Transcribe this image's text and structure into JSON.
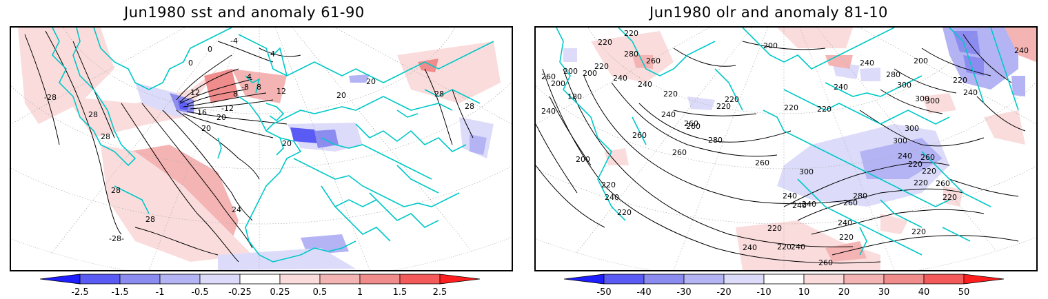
{
  "panels": [
    {
      "title": "Jun1980 sst and anomaly 61-90",
      "contour_labels": [
        "-28",
        "28",
        "28",
        "28",
        "-28-",
        "28",
        "24",
        "20",
        "20",
        "16",
        "12",
        "8",
        "4",
        "0",
        "0",
        "-4",
        "-8",
        "-12",
        "4",
        "8",
        "12",
        "20",
        "20",
        "28",
        "28",
        "20"
      ],
      "colorbar": {
        "labels": [
          "-2.5",
          "-1.5",
          "-1",
          "-0.5",
          "-0.25",
          "0.25",
          "0.5",
          "1",
          "1.5",
          "2.5"
        ],
        "colors": [
          "#1e1eff",
          "#5a5af5",
          "#8c8cf0",
          "#b4b4f5",
          "#dcdcfa",
          "#ffffff",
          "#fadcdc",
          "#f5b4b4",
          "#f08c8c",
          "#f55a5a",
          "#ff1e1e"
        ]
      }
    },
    {
      "title": "Jun1980 olr and anomaly 81-10",
      "contour_labels": [
        "220",
        "220",
        "280",
        "260",
        "200",
        "240",
        "200",
        "220",
        "260",
        "200",
        "180",
        "240",
        "240",
        "220",
        "260",
        "280",
        "220",
        "240",
        "260",
        "260",
        "260",
        "200",
        "220",
        "240",
        "260",
        "220",
        "220",
        "220",
        "220",
        "240",
        "200",
        "240",
        "280",
        "300",
        "300",
        "300",
        "300",
        "300",
        "240",
        "220",
        "260",
        "220",
        "220",
        "300",
        "280",
        "260",
        "240",
        "260",
        "240",
        "220",
        "240",
        "240",
        "220",
        "220",
        "260",
        "220",
        "240",
        "220",
        "240",
        "200",
        "220",
        "240",
        "240"
      ],
      "colorbar": {
        "labels": [
          "-50",
          "-40",
          "-30",
          "-20",
          "-10",
          "10",
          "20",
          "30",
          "40",
          "50"
        ],
        "colors": [
          "#1e1eff",
          "#5a5af5",
          "#8c8cf0",
          "#b4b4f5",
          "#dcdcfa",
          "#ffffff",
          "#fadcdc",
          "#f5b4b4",
          "#f08c8c",
          "#f55a5a",
          "#ff1e1e"
        ]
      }
    }
  ],
  "colors": {
    "coastline": "#00c8c8",
    "contour": "#000000",
    "grid": "#aaaaaa"
  }
}
